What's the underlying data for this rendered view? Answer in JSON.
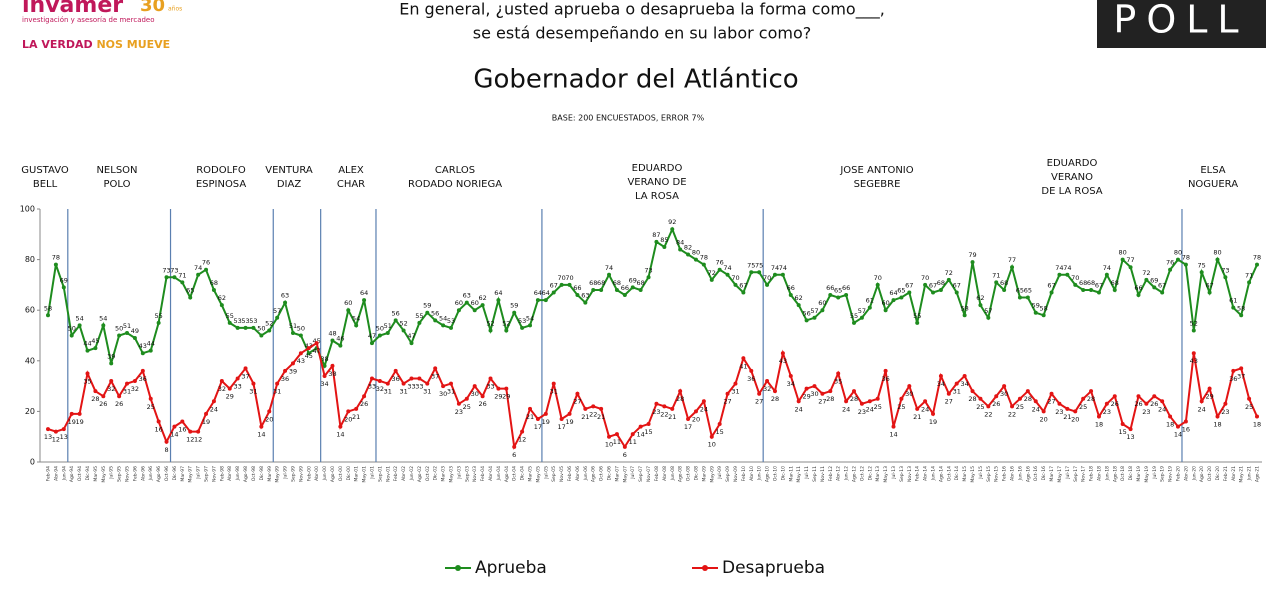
{
  "header": {
    "brand": "invamer",
    "brand_years": "30",
    "brand_years_text": "años",
    "brand_tagline": "investigación y asesoría de mercadeo",
    "motto_a": "LA VERDAD",
    "motto_b": "NOS MUEVE",
    "question_line1": "En general, ¿usted aprueba o desaprueba la forma como___,",
    "question_line2": "se está desempeñando en su labor como?",
    "poll_logo": "POLL"
  },
  "chart_data": {
    "type": "line",
    "title": "Gobernador del Atlántico",
    "subtitle": "BASE: 200 ENCUESTADOS, ERROR 7%",
    "periods": [
      {
        "lines": [
          "GUSTAVO",
          "BELL"
        ]
      },
      {
        "lines": [
          "NELSON",
          "POLO"
        ]
      },
      {
        "lines": [
          "RODOLFO",
          "ESPINOSA"
        ]
      },
      {
        "lines": [
          "VENTURA",
          "DIAZ"
        ]
      },
      {
        "lines": [
          "ALEX",
          "CHAR"
        ]
      },
      {
        "lines": [
          "CARLOS",
          "RODADO NORIEGA"
        ]
      },
      {
        "lines": [
          "EDUARDO",
          "VERANO DE",
          "LA ROSA"
        ]
      },
      {
        "lines": [
          "JOSE ANTONIO",
          "SEGEBRE"
        ]
      },
      {
        "lines": [
          "EDUARDO",
          "VERANO",
          "DE LA ROSA"
        ]
      },
      {
        "lines": [
          "ELSA",
          "NOGUERA"
        ]
      }
    ],
    "categories": [
      "Feb-94",
      "Abr-94",
      "Jun-94",
      "Ago-94",
      "Oct-94",
      "Dic-94",
      "Mar-95",
      "May-95",
      "Jul-95",
      "Sep-95",
      "Nov-95",
      "Feb-96",
      "Abr-96",
      "Jun-96",
      "Ago-96",
      "Oct-96",
      "Dic-96",
      "Mar-97",
      "May-97",
      "Jul-97",
      "Sep-97",
      "Nov-97",
      "Feb-98",
      "Abr-98",
      "Jun-98",
      "Ago-98",
      "Oct-98",
      "Dic-98",
      "Mar-99",
      "May-99",
      "Jul-99",
      "Sep-99",
      "Nov-99",
      "Feb-00",
      "Abr-00",
      "Jun-00",
      "Ago-00",
      "Oct-00",
      "Dic-00",
      "Mar-01",
      "May-01",
      "Jul-01",
      "Sep-01",
      "Nov-01",
      "Feb-02",
      "Abr-02",
      "Jun-02",
      "Ago-02",
      "Oct-02",
      "Dic-02",
      "Mar-03",
      "May-03",
      "Jul-03",
      "Sep-03",
      "Nov-03",
      "Feb-04",
      "Abr-04",
      "Jun-04",
      "Ago-04",
      "Oct-04",
      "Dic-04",
      "Mar-05",
      "May-05",
      "Jul-05",
      "Sep-05",
      "Nov-05",
      "Feb-06",
      "Abr-06",
      "Jun-06",
      "Ago-06",
      "Oct-06",
      "Dic-06",
      "Mar-07",
      "May-07",
      "Jul-07",
      "Sep-07",
      "Nov-07",
      "Feb-08",
      "Abr-08",
      "Jun-08",
      "Ago-08",
      "Oct-08",
      "Dic-08",
      "Mar-09",
      "May-09",
      "Jul-09",
      "Sep-09",
      "Nov-09",
      "Feb-10",
      "Abr-10",
      "Jun-10",
      "Ago-10",
      "Oct-10",
      "Dic-10",
      "Mar-11",
      "May-11",
      "Jul-11",
      "Sep-11",
      "Nov-11",
      "Feb-12",
      "Abr-12",
      "Jun-12",
      "Ago-12",
      "Oct-12",
      "Dic-12",
      "Mar-13",
      "May-13",
      "Jul-13",
      "Sep-13",
      "Nov-13",
      "Feb-14",
      "Abr-14",
      "Jun-14",
      "Ago-14",
      "Oct-14",
      "Dic-14",
      "Mar-15",
      "May-15",
      "Jul-15",
      "Sep-15",
      "Nov-15",
      "Feb-16",
      "Abr-16",
      "Jun-16",
      "Ago-16",
      "Oct-16",
      "Dic-16",
      "Mar-17",
      "May-17",
      "Jul-17",
      "Sep-17",
      "Nov-17",
      "Feb-18",
      "Abr-18",
      "Jun-18",
      "Ago-18",
      "Oct-18",
      "Dic-18",
      "Mar-19",
      "May-19",
      "Jul-19",
      "Sep-19",
      "Nov-19",
      "Feb-20",
      "Abr-20",
      "Jun-20",
      "Ago-20",
      "Oct-20",
      "Dic-20",
      "Feb-21",
      "Abr-21",
      "May-21",
      "Jun-21",
      "Ago-21"
    ],
    "series": [
      {
        "name": "Aprueba",
        "color": "#1e8c1e",
        "values": [
          58,
          78,
          69,
          50,
          54,
          44,
          45,
          54,
          39,
          50,
          51,
          49,
          43,
          44,
          55,
          73,
          73,
          71,
          65,
          74,
          76,
          68,
          62,
          55,
          53,
          53,
          53,
          50,
          52,
          57,
          63,
          51,
          50,
          43,
          45,
          38,
          48,
          46,
          60,
          54,
          64,
          47,
          50,
          51,
          56,
          52,
          47,
          55,
          59,
          56,
          54,
          53,
          60,
          63,
          60,
          62,
          52,
          64,
          52,
          59,
          53,
          54,
          64,
          64,
          67,
          70,
          70,
          66,
          63,
          68,
          68,
          74,
          68,
          66,
          69,
          68,
          73,
          87,
          85,
          92,
          84,
          82,
          80,
          78,
          72,
          76,
          74,
          70,
          67,
          75,
          75,
          70,
          74,
          74,
          66,
          62,
          56,
          57,
          60,
          66,
          65,
          66,
          55,
          57,
          61,
          70,
          60,
          64,
          65,
          67,
          55,
          70,
          67,
          68,
          72,
          67,
          58,
          79,
          62,
          57,
          71,
          68,
          77,
          65,
          65,
          59,
          58,
          67,
          74,
          74,
          70,
          68,
          68,
          67,
          74,
          68,
          80,
          77,
          66,
          72,
          69,
          67,
          76,
          80,
          78,
          52,
          75,
          67,
          80,
          73,
          61,
          58,
          71,
          78
        ]
      },
      {
        "name": "Desaprueba",
        "color": "#e31414",
        "values": [
          13,
          12,
          13,
          19,
          19,
          35,
          28,
          26,
          32,
          26,
          31,
          32,
          36,
          25,
          16,
          8,
          14,
          16,
          12,
          12,
          19,
          24,
          32,
          29,
          33,
          37,
          31,
          14,
          20,
          31,
          36,
          39,
          43,
          45,
          47,
          34,
          38,
          14,
          20,
          21,
          26,
          33,
          32,
          31,
          36,
          31,
          33,
          33,
          31,
          37,
          30,
          31,
          23,
          25,
          30,
          26,
          33,
          29,
          29,
          6,
          12,
          21,
          17,
          19,
          31,
          17,
          19,
          27,
          21,
          22,
          21,
          10,
          11,
          6,
          11,
          14,
          15,
          23,
          22,
          21,
          28,
          17,
          20,
          24,
          10,
          15,
          27,
          31,
          41,
          36,
          27,
          32,
          28,
          43,
          34,
          24,
          29,
          30,
          27,
          28,
          35,
          24,
          28,
          23,
          24,
          25,
          36,
          14,
          25,
          30,
          21,
          24,
          19,
          34,
          27,
          31,
          34,
          28,
          25,
          22,
          26,
          30,
          22,
          25,
          28,
          24,
          20,
          27,
          23,
          21,
          20,
          25,
          28,
          18,
          23,
          26,
          15,
          13,
          26,
          23,
          26,
          24,
          18,
          14,
          16,
          43,
          24,
          29,
          18,
          23,
          36,
          37,
          25,
          18
        ]
      }
    ],
    "ylim": [
      0,
      100
    ],
    "yticks": [
      0,
      20,
      40,
      60,
      80,
      100
    ],
    "grid": false,
    "legend": "bottom"
  }
}
